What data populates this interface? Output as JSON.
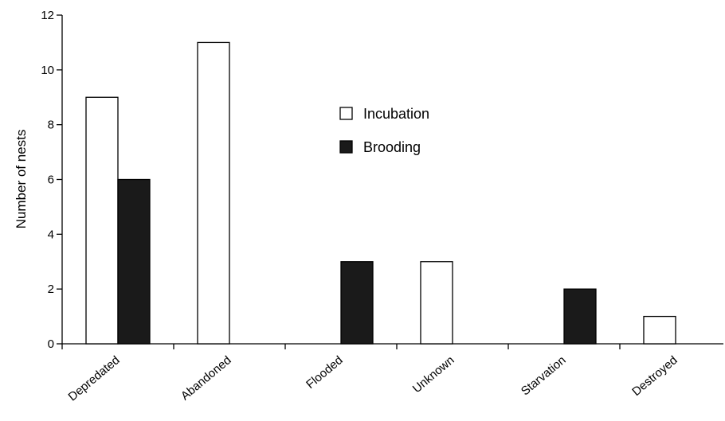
{
  "chart_data": {
    "type": "bar",
    "title": "",
    "xlabel": "",
    "ylabel": "Number of nests",
    "ylim": [
      0,
      12
    ],
    "yticks": [
      0,
      2,
      4,
      6,
      8,
      10,
      12
    ],
    "categories": [
      "Depredated",
      "Abandoned",
      "Flooded",
      "Unknown",
      "Starvation",
      "Destroyed"
    ],
    "series": [
      {
        "name": "Incubation",
        "color": "#ffffff",
        "values": [
          9,
          11,
          0,
          3,
          0,
          1
        ]
      },
      {
        "name": "Brooding",
        "color": "#1a1a1a",
        "values": [
          6,
          0,
          3,
          0,
          2,
          0
        ]
      }
    ],
    "grid": false,
    "legend_position": "top-center"
  }
}
